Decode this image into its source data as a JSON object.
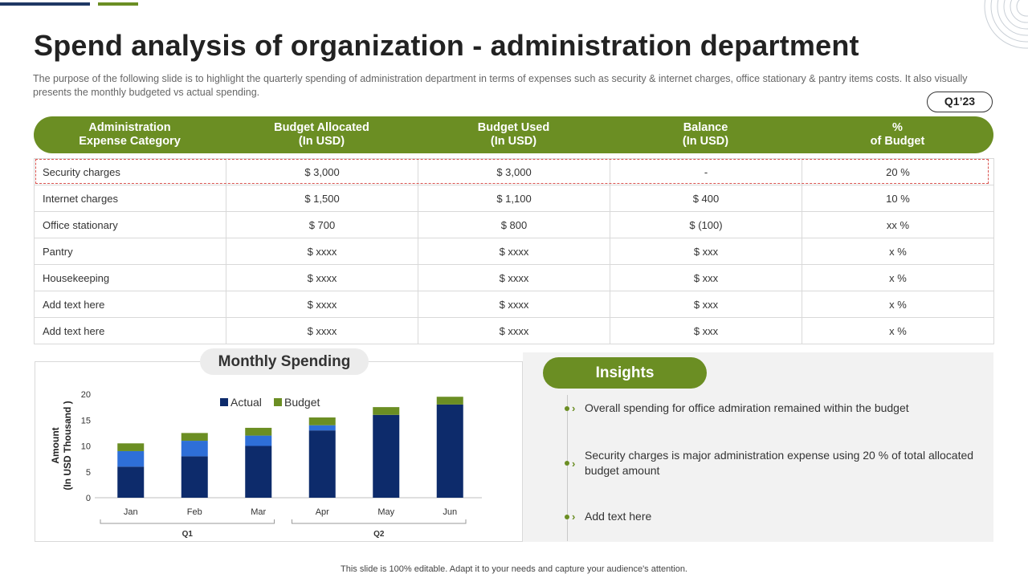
{
  "title": "Spend analysis of organization - administration department",
  "subtitle": "The purpose of the following slide is to highlight the quarterly spending of administration department in terms of expenses such as security & internet charges, office stationary & pantry items costs. It also visually presents the monthly budgeted vs actual spending.",
  "quarter_badge": "Q1’23",
  "table": {
    "headers": [
      "Administration\nExpense Category",
      "Budget Allocated\n(In USD)",
      "Budget Used\n(In USD)",
      "Balance\n(In USD)",
      "%\nof Budget"
    ],
    "rows": [
      [
        "Security charges",
        "$ 3,000",
        "$ 3,000",
        "-",
        "20 %"
      ],
      [
        "Internet charges",
        "$ 1,500",
        "$ 1,100",
        "$ 400",
        "10 %"
      ],
      [
        "Office stationary",
        "$ 700",
        "$ 800",
        "$ (100)",
        "xx %"
      ],
      [
        "Pantry",
        "$ xxxx",
        "$ xxxx",
        "$ xxx",
        "x %"
      ],
      [
        "Housekeeping",
        "$ xxxx",
        "$ xxxx",
        "$ xxx",
        "x %"
      ],
      [
        "Add text here",
        "$ xxxx",
        "$ xxxx",
        "$ xxx",
        "x %"
      ],
      [
        "Add text here",
        "$ xxxx",
        "$ xxxx",
        "$ xxx",
        "x %"
      ]
    ]
  },
  "chart_title": "Monthly Spending",
  "chart_data": {
    "type": "bar",
    "stacked": true,
    "categories": [
      "Jan",
      "Feb",
      "Mar",
      "Apr",
      "May",
      "Jun"
    ],
    "groups": [
      {
        "label": "Q1",
        "categories": [
          "Jan",
          "Feb",
          "Mar"
        ]
      },
      {
        "label": "Q2",
        "categories": [
          "Apr",
          "May",
          "Jun"
        ]
      }
    ],
    "series": [
      {
        "name": "Actual",
        "color": "#0d2b6b",
        "values": [
          6,
          8,
          10,
          13,
          16,
          18
        ]
      },
      {
        "name": "",
        "color": "#2e6fd8",
        "values": [
          3,
          3,
          2,
          1,
          0,
          0
        ]
      },
      {
        "name": "Budget",
        "color": "#6b8e23",
        "values": [
          1.5,
          1.5,
          1.5,
          1.5,
          1.5,
          1.5
        ]
      }
    ],
    "ylabel": "Amount\n(In USD Thousand )",
    "yticks": [
      0,
      5,
      10,
      15,
      20
    ],
    "ylim": [
      0,
      20
    ],
    "legend": "top-center",
    "grid": false
  },
  "insights": {
    "title": "Insights",
    "items": [
      "Overall spending for office admiration remained within the budget",
      "Security charges is major administration expense using 20 % of total allocated budget amount",
      "Add text here"
    ]
  },
  "footer": "This slide is 100% editable. Adapt it to your needs and capture your audience's attention."
}
